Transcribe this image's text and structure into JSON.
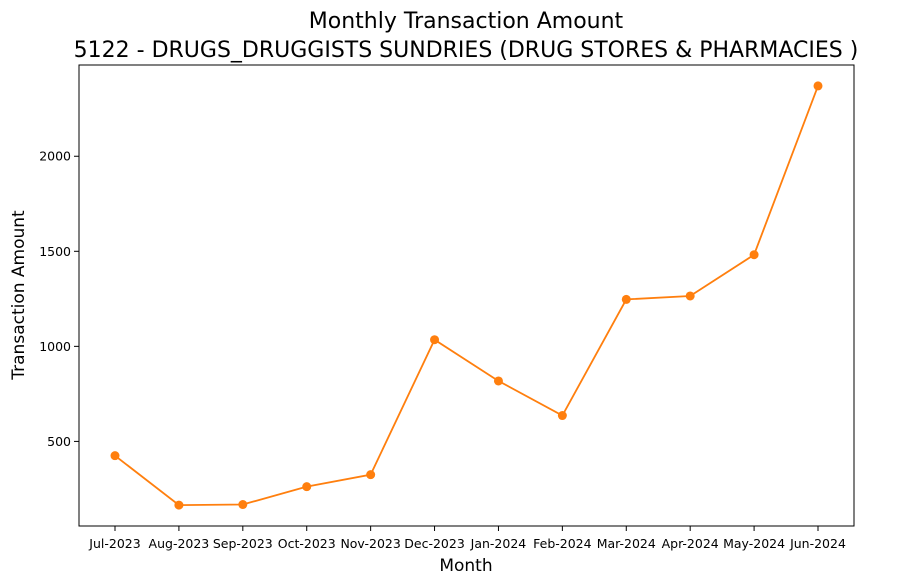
{
  "chart_data": {
    "type": "line",
    "title": "Monthly Transaction Amount",
    "subtitle": "5122 - DRUGS_DRUGGISTS SUNDRIES (DRUG STORES & PHARMACIES )",
    "xlabel": "Month",
    "ylabel": "Transaction Amount",
    "categories": [
      "Jul-2023",
      "Aug-2023",
      "Sep-2023",
      "Oct-2023",
      "Nov-2023",
      "Dec-2023",
      "Jan-2024",
      "Feb-2024",
      "Mar-2024",
      "Apr-2024",
      "May-2024",
      "Jun-2024"
    ],
    "series": [
      {
        "values": [
          425,
          165,
          168,
          262,
          325,
          1035,
          818,
          636,
          1247,
          1265,
          1482,
          2370
        ],
        "color": "#ff7f0e"
      }
    ],
    "yticks": [
      500,
      1000,
      1500,
      2000
    ],
    "ylim": [
      55,
      2480
    ],
    "grid": false,
    "legend": "none"
  }
}
